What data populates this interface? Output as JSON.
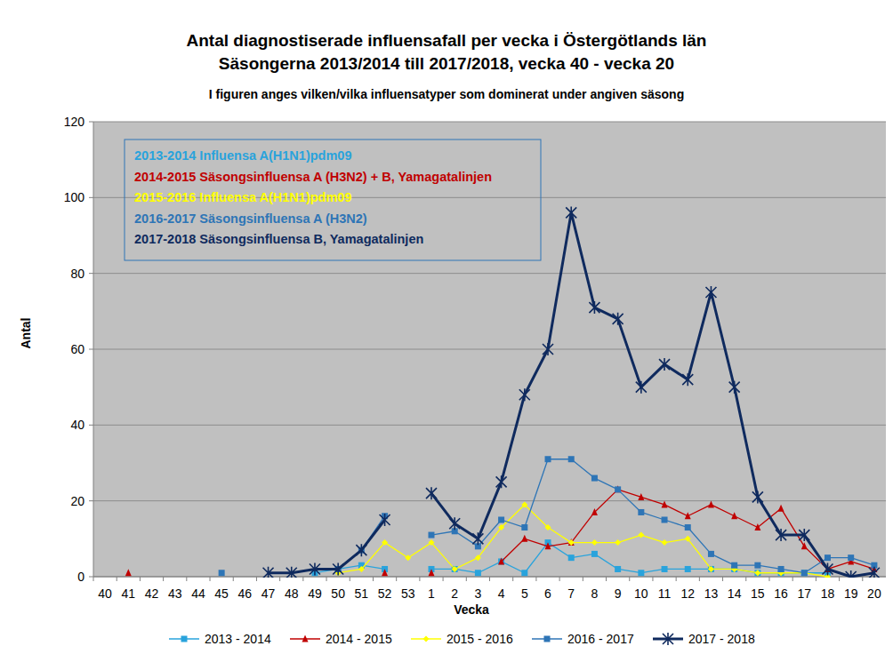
{
  "chart_data": {
    "type": "line",
    "title": [
      "Antal diagnostiserade  influensafall per vecka i Östergötlands län",
      "Säsongerna  2013/2014 till 2017/2018, vecka 40 - vecka 20"
    ],
    "subtitle": "I figuren anges vilken/vilka influensatyper som dominerat under  angiven säsong",
    "x_label": "Vecka",
    "y_label": "Antal",
    "categories": [
      "40",
      "41",
      "42",
      "43",
      "44",
      "45",
      "46",
      "47",
      "48",
      "49",
      "50",
      "51",
      "52",
      "53",
      "1",
      "2",
      "3",
      "4",
      "5",
      "6",
      "7",
      "8",
      "9",
      "10",
      "11",
      "12",
      "13",
      "14",
      "15",
      "16",
      "17",
      "18",
      "19",
      "20"
    ],
    "ylim": [
      0,
      120
    ],
    "yticks": [
      0,
      20,
      40,
      60,
      80,
      100,
      120
    ],
    "grid": true,
    "legend": "bottom",
    "annotations": [
      {
        "text": "2013-2014 Influensa A(H1N1)pdm09",
        "color": "#29a3dc"
      },
      {
        "text": "2014-2015 Säsongsinfluensa A (H3N2) + B, Yamagatalinjen",
        "color": "#c00000"
      },
      {
        "text": "2015-2016 Influensa A(H1N1)pdm09",
        "color": "#ffff00"
      },
      {
        "text": "2016-2017 Säsongsinfluensa A (H3N2)",
        "color": "#2e75b6"
      },
      {
        "text": "2017-2018 Säsongsinfluensa B, Yamagatalinjen",
        "color": "#0f2a5e"
      }
    ],
    "series": [
      {
        "name": "2013 - 2014",
        "color": "#29a3dc",
        "marker": "square",
        "line_style": "solid",
        "values": [
          null,
          null,
          null,
          null,
          null,
          null,
          null,
          null,
          null,
          1,
          2,
          3,
          2,
          null,
          2,
          2,
          1,
          4,
          1,
          9,
          5,
          6,
          2,
          1,
          2,
          2,
          2,
          2,
          1,
          1,
          1,
          1,
          null,
          null
        ]
      },
      {
        "name": "2014 - 2015",
        "color": "#c00000",
        "marker": "triangle",
        "line_style": "solid",
        "values": [
          null,
          1,
          null,
          null,
          null,
          null,
          null,
          null,
          null,
          null,
          null,
          null,
          1,
          null,
          1,
          null,
          null,
          4,
          10,
          8,
          9,
          17,
          23,
          21,
          19,
          16,
          19,
          16,
          13,
          18,
          8,
          2,
          4,
          2
        ]
      },
      {
        "name": "2015 - 2016",
        "color": "#ffff00",
        "marker": "diamond",
        "line_style": "solid",
        "values": [
          null,
          null,
          null,
          null,
          null,
          null,
          null,
          null,
          null,
          null,
          1,
          2,
          9,
          5,
          9,
          2,
          5,
          13,
          19,
          13,
          9,
          9,
          9,
          11,
          9,
          10,
          2,
          2,
          1,
          1,
          1,
          0,
          null,
          null
        ]
      },
      {
        "name": "2016 - 2017",
        "color": "#2e75b6",
        "marker": "square",
        "line_style": "solid",
        "values": [
          null,
          null,
          null,
          null,
          null,
          1,
          null,
          null,
          null,
          null,
          2,
          7,
          16,
          null,
          11,
          12,
          8,
          15,
          13,
          31,
          31,
          26,
          23,
          17,
          15,
          13,
          6,
          3,
          3,
          2,
          1,
          5,
          5,
          3
        ]
      },
      {
        "name": "2017 - 2018",
        "color": "#0f2a5e",
        "marker": "x",
        "line_style": "solid",
        "values": [
          null,
          null,
          null,
          null,
          null,
          null,
          null,
          1,
          1,
          2,
          2,
          7,
          15,
          null,
          22,
          14,
          10,
          25,
          48,
          60,
          96,
          71,
          68,
          50,
          56,
          52,
          75,
          50,
          21,
          11,
          11,
          2,
          0,
          1
        ]
      }
    ]
  }
}
